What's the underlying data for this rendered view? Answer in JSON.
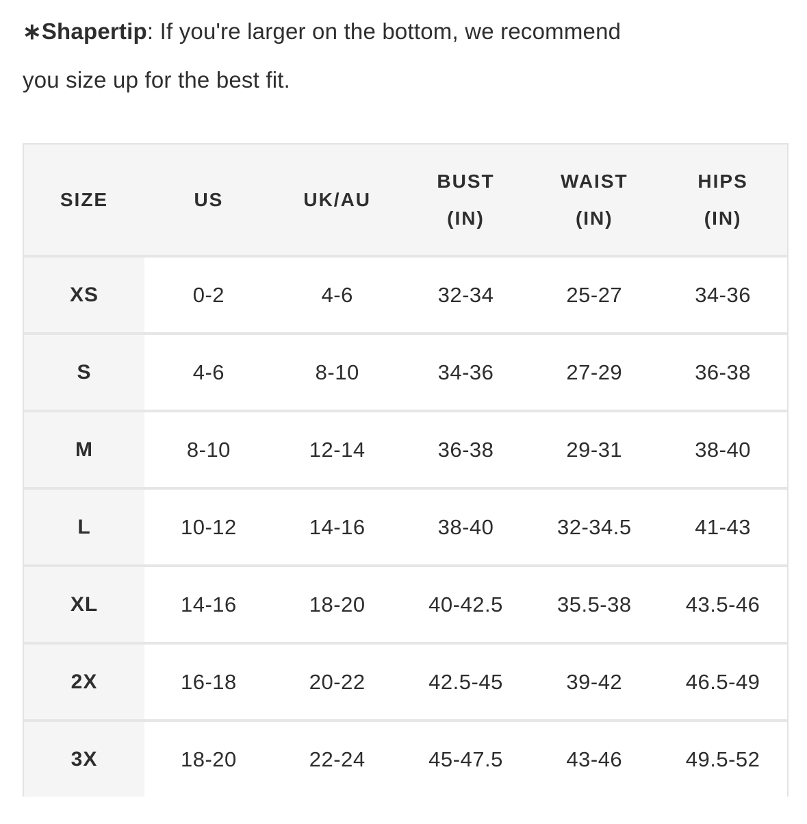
{
  "note": {
    "label": "∗Shapertip",
    "colon": ": ",
    "text": "If you're larger on the bottom, we recommend you size up for the best fit."
  },
  "size_chart": {
    "columns": [
      {
        "key": "size",
        "line1": "SIZE"
      },
      {
        "key": "us",
        "line1": "US"
      },
      {
        "key": "uk_au",
        "line1": "UK/AU"
      },
      {
        "key": "bust",
        "line1": "BUST",
        "line2": "(IN)"
      },
      {
        "key": "waist",
        "line1": "WAIST",
        "line2": "(IN)"
      },
      {
        "key": "hips",
        "line1": "HIPS",
        "line2": "(IN)"
      }
    ],
    "rows": [
      {
        "size": "XS",
        "us": "0-2",
        "uk_au": "4-6",
        "bust": "32-34",
        "waist": "25-27",
        "hips": "34-36"
      },
      {
        "size": "S",
        "us": "4-6",
        "uk_au": "8-10",
        "bust": "34-36",
        "waist": "27-29",
        "hips": "36-38"
      },
      {
        "size": "M",
        "us": "8-10",
        "uk_au": "12-14",
        "bust": "36-38",
        "waist": "29-31",
        "hips": "38-40"
      },
      {
        "size": "L",
        "us": "10-12",
        "uk_au": "14-16",
        "bust": "38-40",
        "waist": "32-34.5",
        "hips": "41-43"
      },
      {
        "size": "XL",
        "us": "14-16",
        "uk_au": "18-20",
        "bust": "40-42.5",
        "waist": "35.5-38",
        "hips": "43.5-46"
      },
      {
        "size": "2X",
        "us": "16-18",
        "uk_au": "20-22",
        "bust": "42.5-45",
        "waist": "39-42",
        "hips": "46.5-49"
      },
      {
        "size": "3X",
        "us": "18-20",
        "uk_au": "22-24",
        "bust": "45-47.5",
        "waist": "43-46",
        "hips": "49.5-52"
      }
    ]
  },
  "colors": {
    "text": "#2e2e2e",
    "header_bg": "#f5f5f5",
    "separator": "#e6e6e6",
    "table_border": "#e3e3e3",
    "page_bg": "#ffffff"
  }
}
